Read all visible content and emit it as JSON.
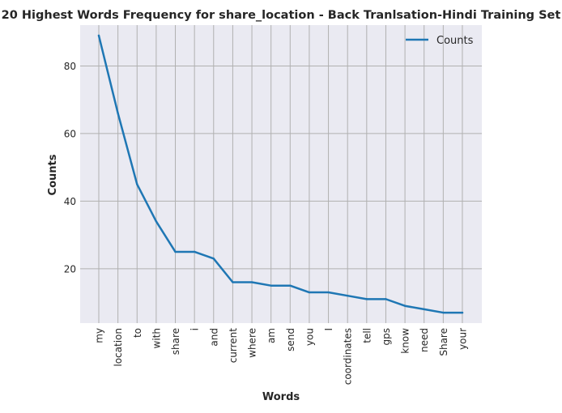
{
  "chart_data": {
    "type": "line",
    "title": "20 Highest Words Frequency for share_location - Back Tranlsation-Hindi Training Set",
    "xlabel": "Words",
    "ylabel": "Counts",
    "categories": [
      "my",
      "location",
      "to",
      "with",
      "share",
      "i",
      "and",
      "current",
      "where",
      "am",
      "send",
      "you",
      "I",
      "coordinates",
      "tell",
      "gps",
      "know",
      "need",
      "Share",
      "your"
    ],
    "series": [
      {
        "name": "Counts",
        "values": [
          89,
          66,
          45,
          34,
          25,
          25,
          23,
          16,
          16,
          15,
          15,
          13,
          13,
          12,
          11,
          11,
          9,
          8,
          7,
          7
        ]
      }
    ],
    "ylim": [
      3.9,
      92.1
    ],
    "yticks": [
      20,
      40,
      60,
      80
    ],
    "grid": true,
    "legend_position": "top-right",
    "colors": {
      "line": "#1f77b4",
      "plot_bg": "#eaeaf2",
      "grid": "#b0b0b0"
    }
  }
}
